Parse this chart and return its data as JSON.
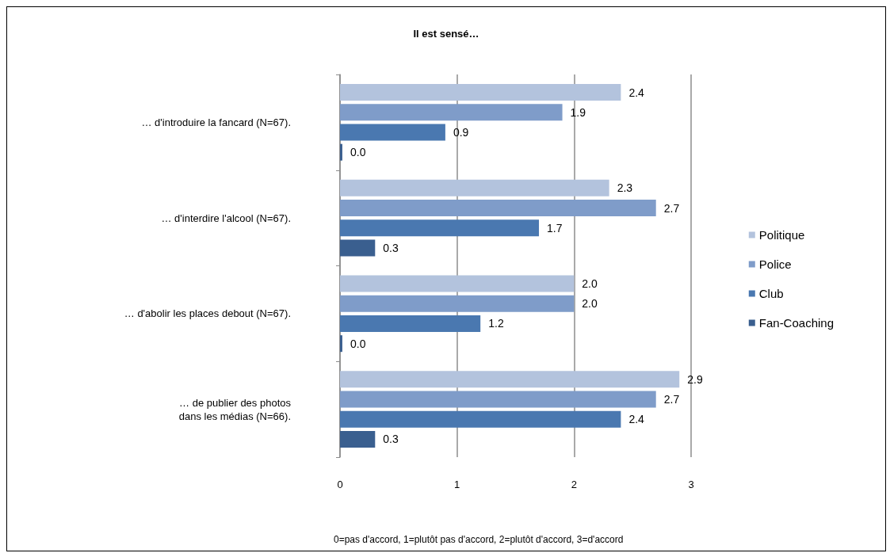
{
  "chart_data": {
    "type": "bar",
    "orientation": "horizontal",
    "title": "Il est sensé…",
    "categories": [
      "… d'introduire la fancard (N=67).",
      "… d'interdire l'alcool (N=67).",
      "… d'abolir les places debout (N=67).",
      "… de publier des photos\ndans les médias (N=66)."
    ],
    "series": [
      {
        "name": "Politique",
        "color": "#b3c3dd",
        "values": [
          2.4,
          2.3,
          2.0,
          2.9
        ],
        "value_labels": [
          "2.4",
          "2.3",
          "2.0",
          "2.9"
        ]
      },
      {
        "name": "Police",
        "color": "#7f9cc9",
        "values": [
          1.9,
          2.7,
          2.0,
          2.7
        ],
        "value_labels": [
          "1.9",
          "2.7",
          "2.0",
          "2.7"
        ]
      },
      {
        "name": "Club",
        "color": "#4a78b0",
        "values": [
          0.9,
          1.7,
          1.2,
          2.4
        ],
        "value_labels": [
          "0.9",
          "1.7",
          "1.2",
          "2.4"
        ]
      },
      {
        "name": "Fan-Coaching",
        "color": "#3a5f8f",
        "values": [
          0.02,
          0.3,
          0.02,
          0.3
        ],
        "value_labels": [
          "0.0",
          "0.3",
          "0.0",
          "0.3"
        ]
      }
    ],
    "xlim": [
      0,
      3
    ],
    "xticks": [
      0,
      1,
      2,
      3
    ],
    "grid": "x",
    "legend": "right",
    "annotations": [
      "0=pas d'accord, 1=plutôt pas d'accord, 2=plutôt d'accord, 3=d'accord"
    ]
  }
}
